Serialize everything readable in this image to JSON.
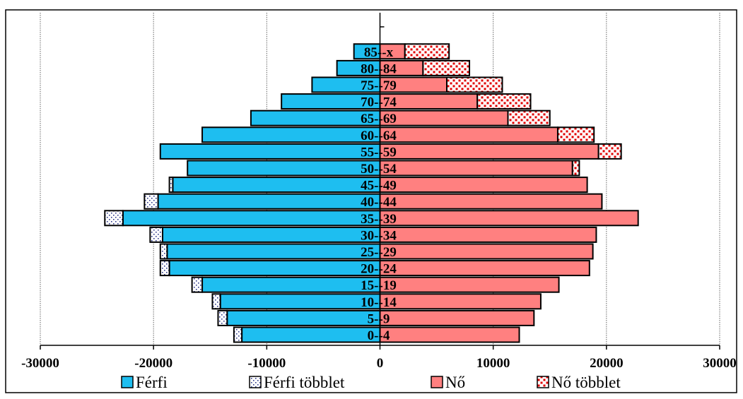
{
  "chart_data": {
    "type": "bar",
    "orientation": "horizontal-population-pyramid",
    "categories": [
      "0--4",
      "5--9",
      "10--14",
      "15--19",
      "20--24",
      "25--29",
      "30--34",
      "35--39",
      "40--44",
      "45--49",
      "50--54",
      "55--59",
      "60--64",
      "65--69",
      "70--74",
      "75--79",
      "80--84",
      "85--x"
    ],
    "series": [
      {
        "name": "Férfi",
        "values": [
          -12200,
          -13500,
          -14100,
          -15700,
          -18600,
          -18800,
          -19200,
          -22700,
          -19600,
          -18300,
          -17000,
          -19400,
          -15700,
          -11400,
          -8700,
          -6000,
          -3800,
          -2300
        ]
      },
      {
        "name": "Férfi többlet",
        "values": [
          -700,
          -800,
          -700,
          -900,
          -800,
          -600,
          -1100,
          -1600,
          -1200,
          -300,
          0,
          0,
          0,
          0,
          0,
          0,
          0,
          0
        ]
      },
      {
        "name": "Nő",
        "values": [
          12300,
          13600,
          14200,
          15800,
          18500,
          18800,
          19100,
          22800,
          19600,
          18300,
          17000,
          19300,
          15700,
          11300,
          8600,
          5900,
          3800,
          2200
        ]
      },
      {
        "name": "Nő többlet",
        "values": [
          0,
          0,
          0,
          0,
          0,
          0,
          0,
          0,
          0,
          0,
          600,
          2000,
          3200,
          3700,
          4700,
          4900,
          4100,
          3900
        ]
      }
    ],
    "x_ticks": [
      "-30000",
      "-20000",
      "-10000",
      "0",
      "10000",
      "20000",
      "30000"
    ],
    "xlim": [
      -30000,
      30000
    ],
    "grid": "vertical",
    "legend_position": "bottom",
    "colors": {
      "male": "#1EBEF0",
      "female": "#FF8080",
      "male_surplus_bg": "#FFFFFF",
      "male_surplus_dot": "#2E3A8C",
      "female_surplus_bg": "#FFFFFF",
      "female_surplus_dot": "#E00000",
      "outline": "#000000"
    }
  }
}
